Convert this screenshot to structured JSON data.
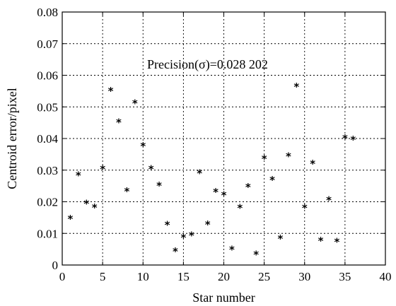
{
  "chart_data": {
    "type": "scatter",
    "title": "",
    "xlabel": "Star number",
    "ylabel": "Centroid error/pixel",
    "xlim": [
      0,
      40
    ],
    "ylim": [
      0,
      0.08
    ],
    "x_ticks": [
      0,
      5,
      10,
      15,
      20,
      25,
      30,
      35,
      40
    ],
    "y_ticks": [
      0,
      0.01,
      0.02,
      0.03,
      0.04,
      0.05,
      0.06,
      0.07,
      0.08
    ],
    "x_tick_labels": [
      "0",
      "5",
      "10",
      "15",
      "20",
      "25",
      "30",
      "35",
      "40"
    ],
    "y_tick_labels": [
      "0",
      "0.01",
      "0.02",
      "0.03",
      "0.04",
      "0.05",
      "0.06",
      "0.07",
      "0.08"
    ],
    "grid": true,
    "marker": "*",
    "annotation": "Precision(σ)=0.028 202",
    "series": [
      {
        "x": [
          1,
          2,
          3,
          4,
          5,
          6,
          7,
          8,
          9,
          10,
          11,
          12,
          13,
          14,
          15,
          16,
          17,
          18,
          19,
          20,
          21,
          22,
          23,
          24,
          25,
          26,
          27,
          28,
          29,
          30,
          31,
          32,
          33,
          34,
          35,
          36
        ],
        "y": [
          0.0148,
          0.0285,
          0.0195,
          0.0183,
          0.0305,
          0.0552,
          0.0453,
          0.0235,
          0.0513,
          0.0378,
          0.0305,
          0.0252,
          0.0128,
          0.0045,
          0.0088,
          0.0095,
          0.0292,
          0.013,
          0.0232,
          0.0222,
          0.005,
          0.0182,
          0.0248,
          0.0035,
          0.0337,
          0.027,
          0.0085,
          0.0345,
          0.0565,
          0.0182,
          0.0322,
          0.0078,
          0.0207,
          0.0075,
          0.0402,
          0.0398
        ]
      }
    ]
  }
}
